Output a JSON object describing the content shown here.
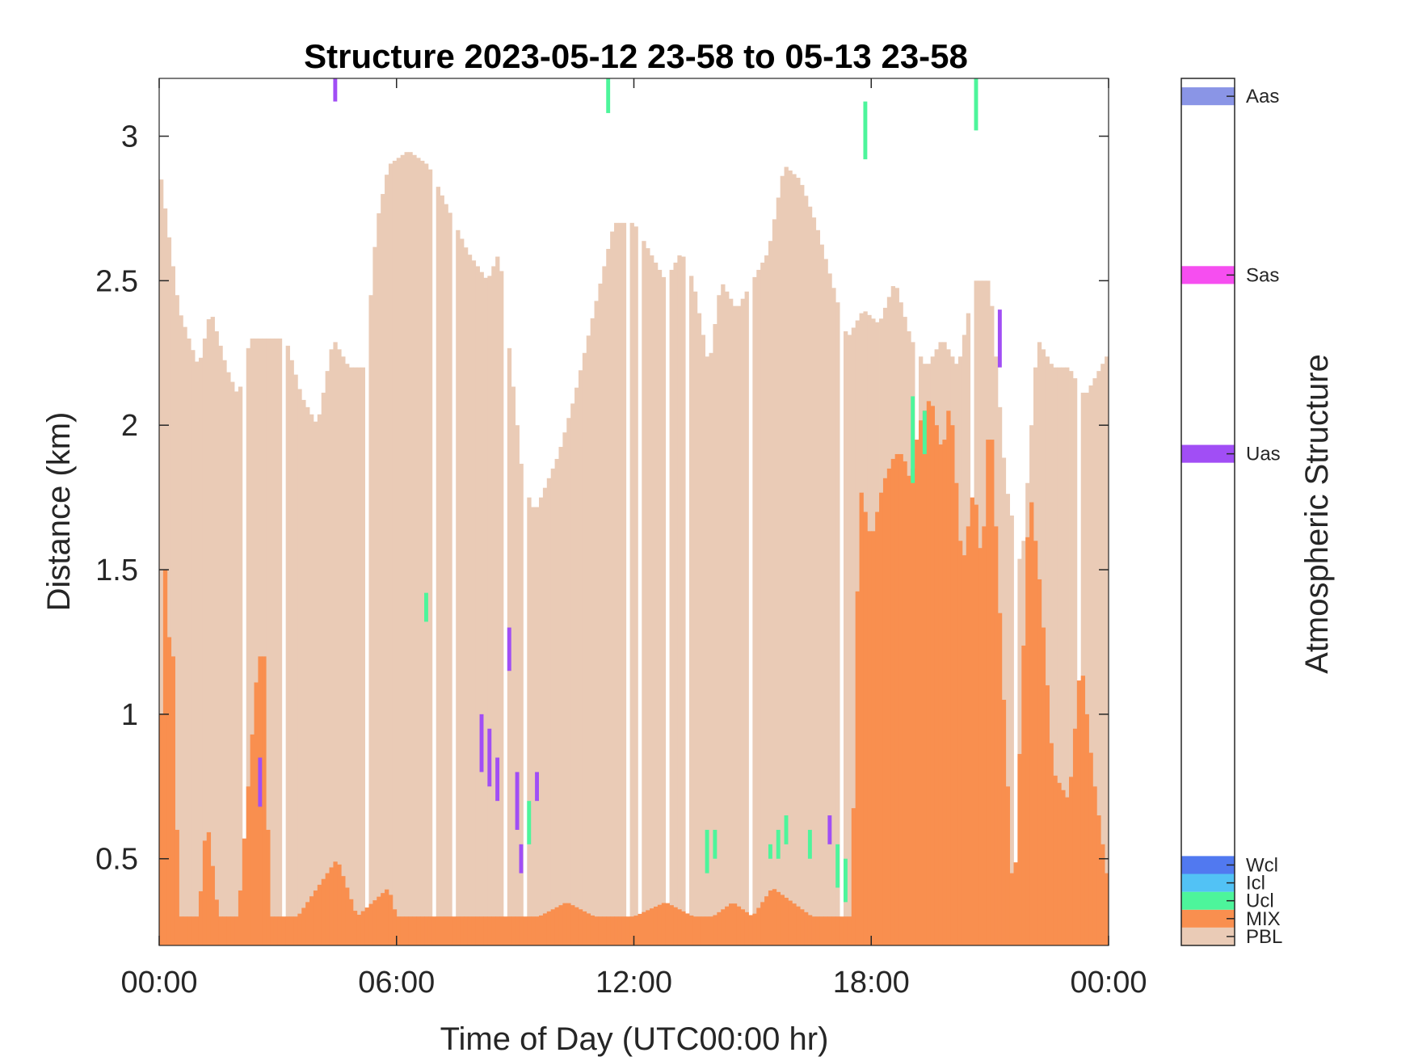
{
  "chart_data": {
    "type": "bar",
    "title": "Structure 2023-05-12 23-58 to 05-13 23-58",
    "xlabel": "Time of Day (UTC00:00 hr)",
    "ylabel": "Distance (km)",
    "colorbar_label": "Atmospheric Structure",
    "x_range_hours": [
      0,
      24
    ],
    "ylim": [
      0.2,
      3.2
    ],
    "x_ticks": [
      {
        "hour": 0,
        "label": "00:00"
      },
      {
        "hour": 6,
        "label": "06:00"
      },
      {
        "hour": 12,
        "label": "12:00"
      },
      {
        "hour": 18,
        "label": "18:00"
      },
      {
        "hour": 24,
        "label": "00:00"
      }
    ],
    "y_ticks": [
      {
        "value": 0.5,
        "label": "0.5"
      },
      {
        "value": 1.0,
        "label": "1"
      },
      {
        "value": 1.5,
        "label": "1.5"
      },
      {
        "value": 2.0,
        "label": "2"
      },
      {
        "value": 2.5,
        "label": "2.5"
      },
      {
        "value": 3.0,
        "label": "3"
      }
    ],
    "categories": [
      {
        "name": "PBL",
        "color": "#EACBB6",
        "level": 0.0
      },
      {
        "name": "MIX",
        "color": "#F98F4F",
        "level": 1.0
      },
      {
        "name": "Ucl",
        "color": "#4DF59B",
        "level": 2.0
      },
      {
        "name": "Icl",
        "color": "#52C2F5",
        "level": 3.0
      },
      {
        "name": "Wcl",
        "color": "#5179F0",
        "level": 4.0
      },
      {
        "name": "Uas",
        "color": "#A14EF5",
        "level": 27.0
      },
      {
        "name": "Sas",
        "color": "#F64EF0",
        "level": 37.0
      },
      {
        "name": "Aas",
        "color": "#8A95E6",
        "level": 47.0
      }
    ],
    "colorbar_range": [
      -0.5,
      48.0
    ],
    "series": [
      {
        "name": "PBL",
        "resolution_hours": 0.1,
        "gaps_hours": [
          2.1,
          3.1,
          5.2,
          6.9,
          7.4,
          8.7,
          9.2,
          11.8,
          12.1,
          12.8,
          13.3,
          14.9,
          17.2,
          19.1,
          20.5,
          21.6,
          23.2
        ],
        "points": [
          [
            0.0,
            2.9
          ],
          [
            0.5,
            2.4
          ],
          [
            1.0,
            2.2
          ],
          [
            1.3,
            2.4
          ],
          [
            1.7,
            2.2
          ],
          [
            2.0,
            2.1
          ],
          [
            2.3,
            2.3
          ],
          [
            2.8,
            2.3
          ],
          [
            3.2,
            2.3
          ],
          [
            3.6,
            2.1
          ],
          [
            4.0,
            2.0
          ],
          [
            4.4,
            2.3
          ],
          [
            4.8,
            2.2
          ],
          [
            5.2,
            2.2
          ],
          [
            5.5,
            2.7
          ],
          [
            5.8,
            2.9
          ],
          [
            6.3,
            2.95
          ],
          [
            6.8,
            2.9
          ],
          [
            7.3,
            2.75
          ],
          [
            7.8,
            2.6
          ],
          [
            8.3,
            2.5
          ],
          [
            8.6,
            2.6
          ],
          [
            8.9,
            2.2
          ],
          [
            9.2,
            1.8
          ],
          [
            9.5,
            1.7
          ],
          [
            9.8,
            1.8
          ],
          [
            10.1,
            1.9
          ],
          [
            10.5,
            2.1
          ],
          [
            11.0,
            2.4
          ],
          [
            11.5,
            2.7
          ],
          [
            12.0,
            2.7
          ],
          [
            12.4,
            2.6
          ],
          [
            12.8,
            2.5
          ],
          [
            13.2,
            2.6
          ],
          [
            13.5,
            2.5
          ],
          [
            13.9,
            2.2
          ],
          [
            14.2,
            2.5
          ],
          [
            14.6,
            2.4
          ],
          [
            15.0,
            2.5
          ],
          [
            15.4,
            2.6
          ],
          [
            15.8,
            2.9
          ],
          [
            16.2,
            2.85
          ],
          [
            16.6,
            2.7
          ],
          [
            17.0,
            2.5
          ],
          [
            17.4,
            2.3
          ],
          [
            17.8,
            2.4
          ],
          [
            18.2,
            2.35
          ],
          [
            18.6,
            2.5
          ],
          [
            19.0,
            2.3
          ],
          [
            19.4,
            2.2
          ],
          [
            19.8,
            2.3
          ],
          [
            20.2,
            2.2
          ],
          [
            20.6,
            2.5
          ],
          [
            21.0,
            2.5
          ],
          [
            21.4,
            1.8
          ],
          [
            21.8,
            1.5
          ],
          [
            22.2,
            2.3
          ],
          [
            22.6,
            2.2
          ],
          [
            23.0,
            2.2
          ],
          [
            23.4,
            2.1
          ],
          [
            23.8,
            2.2
          ],
          [
            24.0,
            2.25
          ]
        ]
      },
      {
        "name": "MIX",
        "resolution_hours": 0.1,
        "points": [
          [
            0.0,
            0.3
          ],
          [
            0.1,
            1.7
          ],
          [
            0.2,
            1.3
          ],
          [
            0.35,
            1.2
          ],
          [
            0.5,
            0.3
          ],
          [
            1.0,
            0.3
          ],
          [
            1.2,
            0.65
          ],
          [
            1.5,
            0.3
          ],
          [
            2.0,
            0.3
          ],
          [
            2.5,
            1.2
          ],
          [
            2.65,
            1.2
          ],
          [
            2.8,
            0.3
          ],
          [
            3.5,
            0.3
          ],
          [
            4.0,
            0.4
          ],
          [
            4.5,
            0.5
          ],
          [
            5.0,
            0.3
          ],
          [
            5.8,
            0.4
          ],
          [
            6.0,
            0.3
          ],
          [
            7.0,
            0.3
          ],
          [
            8.0,
            0.3
          ],
          [
            9.0,
            0.3
          ],
          [
            9.6,
            0.3
          ],
          [
            10.3,
            0.35
          ],
          [
            11.0,
            0.3
          ],
          [
            12.0,
            0.3
          ],
          [
            12.8,
            0.35
          ],
          [
            13.5,
            0.3
          ],
          [
            14.0,
            0.3
          ],
          [
            14.5,
            0.35
          ],
          [
            15.0,
            0.3
          ],
          [
            15.5,
            0.4
          ],
          [
            16.0,
            0.35
          ],
          [
            16.5,
            0.3
          ],
          [
            17.0,
            0.3
          ],
          [
            17.5,
            0.3
          ],
          [
            17.7,
            1.8
          ],
          [
            18.0,
            1.6
          ],
          [
            18.3,
            1.8
          ],
          [
            18.6,
            1.9
          ],
          [
            18.8,
            1.9
          ],
          [
            19.0,
            1.8
          ],
          [
            19.2,
            2.0
          ],
          [
            19.5,
            2.1
          ],
          [
            19.8,
            1.9
          ],
          [
            20.0,
            2.1
          ],
          [
            20.3,
            1.5
          ],
          [
            20.6,
            1.8
          ],
          [
            20.8,
            1.5
          ],
          [
            21.0,
            2.1
          ],
          [
            21.3,
            1.2
          ],
          [
            21.6,
            0.3
          ],
          [
            22.0,
            1.8
          ],
          [
            22.3,
            1.4
          ],
          [
            22.6,
            0.8
          ],
          [
            23.0,
            0.7
          ],
          [
            23.3,
            1.2
          ],
          [
            23.6,
            0.8
          ],
          [
            24.0,
            0.4
          ]
        ]
      },
      {
        "name": "Ucl",
        "segments": [
          [
            6.7,
            1.32,
            1.42
          ],
          [
            11.3,
            3.08,
            3.2
          ],
          [
            17.8,
            2.92,
            3.12
          ],
          [
            20.6,
            3.02,
            3.2
          ],
          [
            9.3,
            0.55,
            0.7
          ],
          [
            13.8,
            0.45,
            0.6
          ],
          [
            14.0,
            0.5,
            0.6
          ],
          [
            15.4,
            0.5,
            0.55
          ],
          [
            15.6,
            0.5,
            0.6
          ],
          [
            15.8,
            0.55,
            0.65
          ],
          [
            16.4,
            0.5,
            0.6
          ],
          [
            17.1,
            0.4,
            0.55
          ],
          [
            17.3,
            0.35,
            0.5
          ],
          [
            19.0,
            1.8,
            2.1
          ],
          [
            19.3,
            1.9,
            2.05
          ]
        ]
      },
      {
        "name": "Uas",
        "segments": [
          [
            4.4,
            3.12,
            3.2
          ],
          [
            2.5,
            0.68,
            0.85
          ],
          [
            8.1,
            0.8,
            1.0
          ],
          [
            8.3,
            0.75,
            0.95
          ],
          [
            8.5,
            0.7,
            0.85
          ],
          [
            8.8,
            1.15,
            1.3
          ],
          [
            9.0,
            0.6,
            0.8
          ],
          [
            9.1,
            0.45,
            0.55
          ],
          [
            9.5,
            0.7,
            0.8
          ],
          [
            16.9,
            0.55,
            0.65
          ],
          [
            21.2,
            2.2,
            2.4
          ]
        ]
      }
    ]
  }
}
